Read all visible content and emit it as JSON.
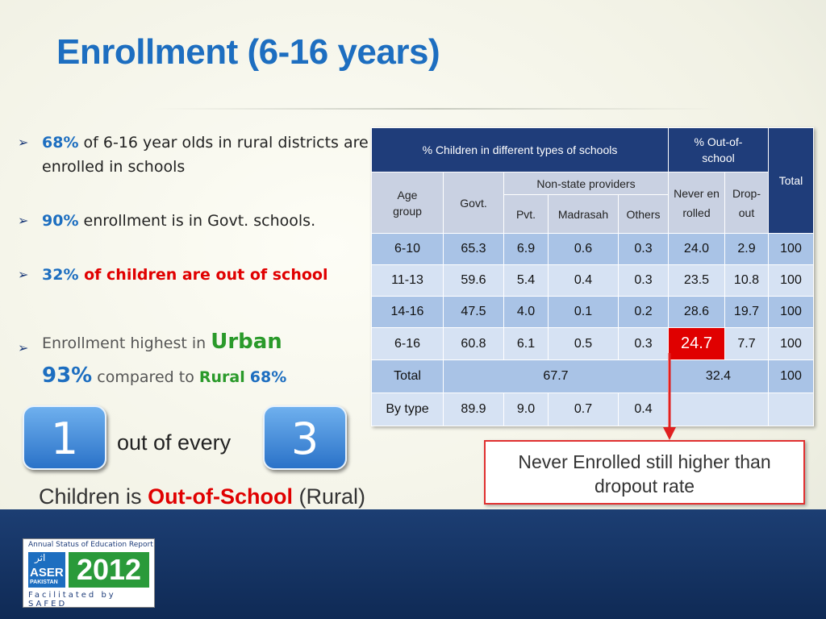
{
  "title": "Enrollment (6-16 years)",
  "bullets": [
    [
      "68%",
      " of 6-16 year olds in rural districts are enrolled in schools"
    ],
    [
      "90%",
      " enrollment is in Govt. schools."
    ],
    [
      "32%",
      " of children are out of school"
    ],
    [
      "Enrollment highest in ",
      "Urban",
      "93%",
      " compared to ",
      "Rural",
      "68%"
    ]
  ],
  "ratio": {
    "first": "1",
    "middle": "out of every",
    "second": "3",
    "caption_start": "Children is ",
    "caption_highlight": "Out-of-School",
    "caption_end": " (Rural)"
  },
  "table": {
    "header": {
      "schools": "% Children in different types of schools",
      "out_of_school": "% Out-of-school",
      "total": "Total",
      "age_group": "Age group",
      "govt": "Govt.",
      "non_state": "Non-state providers",
      "never": "Never enrolled",
      "drop": "Drop-out",
      "pvt": "Pvt.",
      "madrasah": "Madrasah",
      "others": "Others"
    },
    "rows": [
      [
        "6-10",
        "65.3",
        "6.9",
        "0.6",
        "0.3",
        "24.0",
        "2.9",
        "100"
      ],
      [
        "11-13",
        "59.6",
        "5.4",
        "0.4",
        "0.3",
        "23.5",
        "10.8",
        "100"
      ],
      [
        "14-16",
        "47.5",
        "4.0",
        "0.1",
        "0.2",
        "28.6",
        "19.7",
        "100"
      ],
      [
        "6-16",
        "60.8",
        "6.1",
        "0.5",
        "0.3",
        "24.7",
        "7.7",
        "100"
      ],
      [
        "Total",
        "67.7",
        "32.4",
        "100"
      ],
      [
        "By type",
        "89.9",
        "9.0",
        "0.7",
        "0.4"
      ]
    ]
  },
  "callout": "Never Enrolled still higher than dropout rate",
  "logo": {
    "caption": "Annual Status of Education Report",
    "urdu": "اثر",
    "name": "ASER",
    "country": "PAKISTAN",
    "year": "2012",
    "credit": "Facilitated by SAFED"
  }
}
